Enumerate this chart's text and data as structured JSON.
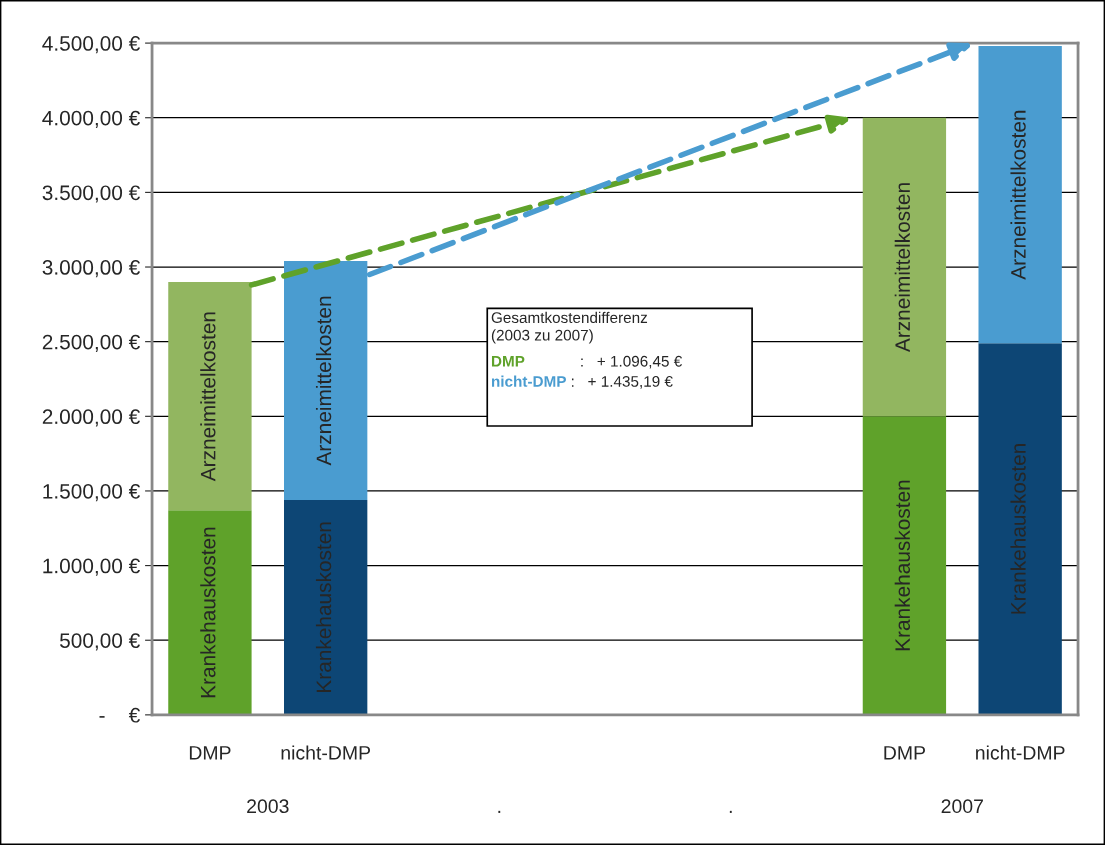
{
  "chart_data": {
    "type": "bar",
    "stacked": true,
    "categories": [
      "DMP",
      "nicht-DMP",
      null,
      null,
      null,
      null,
      "DMP",
      "nicht-DMP"
    ],
    "series": [
      {
        "name": "Krankehauskosten",
        "colors": [
          "#5fa22a",
          "#0d4675",
          null,
          null,
          null,
          null,
          "#5fa22a",
          "#0d4675"
        ],
        "values": [
          1370,
          1440,
          null,
          null,
          null,
          null,
          2000,
          2490
        ]
      },
      {
        "name": "Arzneimittelkosten",
        "colors": [
          "#92b660",
          "#4a9cd0",
          null,
          null,
          null,
          null,
          "#92b660",
          "#4a9cd0"
        ],
        "values": [
          1530,
          1600,
          null,
          null,
          null,
          null,
          2000,
          1990
        ]
      }
    ],
    "ylim": [
      0,
      4500
    ],
    "yticks": [
      {
        "value": 0,
        "label": "-    €"
      },
      {
        "value": 500,
        "label": "500,00 €"
      },
      {
        "value": 1000,
        "label": "1.000,00 €"
      },
      {
        "value": 1500,
        "label": "1.500,00 €"
      },
      {
        "value": 2000,
        "label": "2.000,00 €"
      },
      {
        "value": 2500,
        "label": "2.500,00 €"
      },
      {
        "value": 3000,
        "label": "3.000,00 €"
      },
      {
        "value": 3500,
        "label": "3.500,00 €"
      },
      {
        "value": 4000,
        "label": "4.000,00 €"
      },
      {
        "value": 4500,
        "label": "4.500,00 €"
      }
    ],
    "grid": "y",
    "legend": false,
    "annotations": [
      "2003",
      ".",
      ".",
      "2007",
      "Gesamtkostendifferenz\n(2003 zu 2007)",
      "DMP",
      ":   + 1.096,45 €",
      "nicht-DMP",
      ":   + 1.435,19 €"
    ]
  }
}
